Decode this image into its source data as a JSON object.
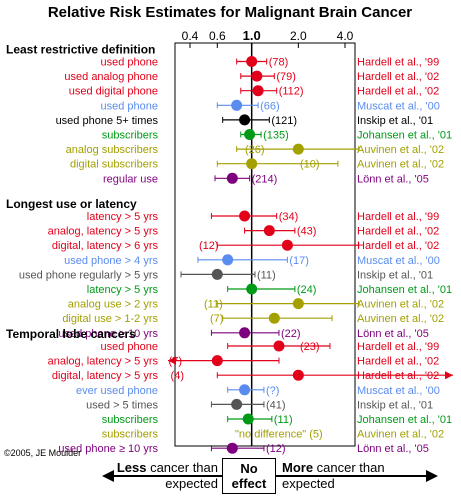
{
  "chart_data": {
    "type": "forest",
    "title": "Relative Risk Estimates for Malignant Brain Cancer",
    "x_scale": "log",
    "x_ticks": [
      {
        "value": 0.4,
        "label": "0.4"
      },
      {
        "value": 0.6,
        "label": "0.6"
      },
      {
        "value": 1.0,
        "label": "1.0"
      },
      {
        "value": 2.0,
        "label": "2.0"
      },
      {
        "value": 4.0,
        "label": "4.0"
      }
    ],
    "reference_line": 1.0,
    "sections": [
      {
        "heading": "Least restrictive definition",
        "rows": [
          {
            "label": "used phone",
            "rr": 1.0,
            "lo": 0.8,
            "hi": 1.25,
            "n": "(78)",
            "study": "Hardell et al., '99",
            "color": "#e2001a"
          },
          {
            "label": "used analog phone",
            "rr": 1.08,
            "lo": 0.85,
            "hi": 1.4,
            "n": "(79)",
            "study": "Hardell et al., '02",
            "color": "#e2001a"
          },
          {
            "label": "used digital phone",
            "rr": 1.1,
            "lo": 0.85,
            "hi": 1.45,
            "n": "(112)",
            "study": "Hardell et al., '02",
            "color": "#e2001a"
          },
          {
            "label": "used phone",
            "rr": 0.8,
            "lo": 0.6,
            "hi": 1.1,
            "n": "(66)",
            "study": "Muscat et al., '00",
            "color": "#5a8cf0"
          },
          {
            "label": "used phone 5+ times",
            "rr": 0.9,
            "lo": 0.65,
            "hi": 1.3,
            "n": "(121)",
            "study": "Inskip et al., '01",
            "color": "#000000"
          },
          {
            "label": "subscribers",
            "rr": 0.97,
            "lo": 0.85,
            "hi": 1.15,
            "n": "(135)",
            "study": "Johansen et al., '01",
            "color": "#009a17"
          },
          {
            "label": "analog subscribers",
            "rr": 2.0,
            "lo": 0.8,
            "hi": 4.9,
            "n": "(26)",
            "study": "Auvinen et al., '02",
            "color": "#a3a000"
          },
          {
            "label": "digital subscribers",
            "rr": 1.0,
            "lo": 0.6,
            "hi": 3.6,
            "n": "(10)",
            "study": "Auvinen et al., '02",
            "color": "#a3a000"
          },
          {
            "label": "regular use",
            "rr": 0.75,
            "lo": 0.58,
            "hi": 0.97,
            "n": "(214)",
            "study": "Lönn et al., '05",
            "color": "#7f007f"
          }
        ]
      },
      {
        "heading": "Longest use or latency",
        "rows": [
          {
            "label": "latency > 5 yrs",
            "rr": 0.9,
            "lo": 0.55,
            "hi": 1.45,
            "n": "(34)",
            "study": "Hardell et al., '99",
            "color": "#e2001a"
          },
          {
            "label": "analog, latency > 5 yrs",
            "rr": 1.3,
            "lo": 0.9,
            "hi": 1.9,
            "n": "(43)",
            "study": "Hardell et al., '02",
            "color": "#e2001a"
          },
          {
            "label": "digital, latency > 6 yrs",
            "rr": 1.7,
            "lo": 0.6,
            "hi": 4.9,
            "n": "(12)",
            "study": "Hardell et al., '02",
            "color": "#e2001a"
          },
          {
            "label": "used phone > 4 yrs",
            "rr": 0.7,
            "lo": 0.45,
            "hi": 1.7,
            "n": "(17)",
            "study": "Muscat et al., '00",
            "color": "#5a8cf0"
          },
          {
            "label": "used phone regularly > 5 yrs",
            "rr": 0.6,
            "lo": 0.35,
            "hi": 1.05,
            "n": "(11)",
            "study": "Inskip et al., '01",
            "color": "#555555"
          },
          {
            "label": "latency > 5 yrs",
            "rr": 1.0,
            "lo": 0.7,
            "hi": 1.9,
            "n": "(24)",
            "study": "Johansen et al., '01",
            "color": "#009a17"
          },
          {
            "label": "analog use > 2 yrs",
            "rr": 2.0,
            "lo": 0.6,
            "hi": 4.9,
            "n": "(11)",
            "study": "Auvinen et al., '02",
            "color": "#a3a000"
          },
          {
            "label": "digital use > 1-2 yrs",
            "rr": 1.4,
            "lo": 0.65,
            "hi": 3.3,
            "n": "(7)",
            "study": "Auvinen et al., '02",
            "color": "#a3a000"
          },
          {
            "label": "used phone ≥ 10 yrs",
            "rr": 0.9,
            "lo": 0.55,
            "hi": 1.5,
            "n": "(22)",
            "study": "Lönn et al., '05",
            "color": "#7f007f"
          }
        ]
      },
      {
        "heading": "Temporal lobe cancers",
        "rows": [
          {
            "label": "used phone",
            "rr": 1.5,
            "lo": 0.7,
            "hi": 3.2,
            "n": "(23)",
            "study": "Hardell et al., '99",
            "color": "#e2001a"
          },
          {
            "label": "analog, latency > 5 yrs",
            "rr": 0.6,
            "lo": 0.15,
            "hi": 1.5,
            "n": "(7)",
            "study": "Hardell et al., '02",
            "color": "#e2001a",
            "lo_arrow": true
          },
          {
            "label": "digital, latency > 5 yrs",
            "rr": 2.0,
            "lo": 0.6,
            "hi": 5.0,
            "n": "(4)",
            "study": "Hardell et al., '02",
            "color": "#e2001a",
            "hi_arrow": true
          },
          {
            "label": "ever used phone",
            "rr": 0.9,
            "lo": 0.7,
            "hi": 1.2,
            "n": "(?)",
            "study": "Muscat et al., '00",
            "color": "#5a8cf0"
          },
          {
            "label": "used > 5 times",
            "rr": 0.8,
            "lo": 0.55,
            "hi": 1.2,
            "n": "(41)",
            "study": "Inskip et al., '01",
            "color": "#555555"
          },
          {
            "label": "subscribers",
            "rr": 0.95,
            "lo": 0.7,
            "hi": 1.35,
            "n": "(11)",
            "study": "Johansen et al., '01",
            "color": "#009a17"
          },
          {
            "label": "subscribers",
            "rr": null,
            "lo": null,
            "hi": null,
            "n": "\"no difference\"  (5)",
            "study": "Auvinen et al., '02",
            "color": "#a3a000"
          },
          {
            "label": "used phone ≥ 10 yrs",
            "rr": 0.75,
            "lo": 0.55,
            "hi": 1.2,
            "n": "(12)",
            "study": "Lönn et al., '05",
            "color": "#7f007f"
          }
        ]
      }
    ]
  },
  "credit": "©2005, JE Moulder",
  "effect_bar": {
    "less_bold": "Less",
    "less_rest": " cancer than",
    "less_line2": "expected",
    "no_line1": "No",
    "no_line2": "effect",
    "more_bold": "More",
    "more_rest": " cancer than",
    "more_line2": "expected"
  }
}
